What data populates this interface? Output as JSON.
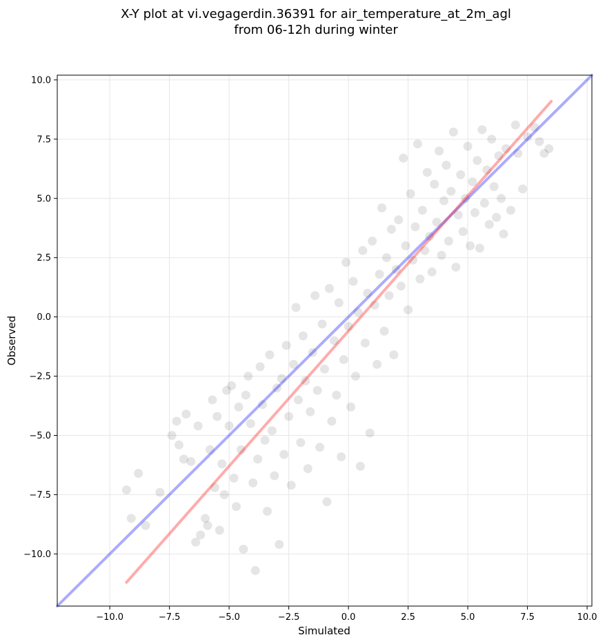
{
  "chart_data": {
    "type": "scatter",
    "title": "X-Y plot at vi.vegagerdin.36391 for air_temperature_at_2m_agl",
    "subtitle": "from 06-12h during winter",
    "xlabel": "Simulated",
    "ylabel": "Observed",
    "xlim": [
      -12.2,
      10.2
    ],
    "ylim": [
      -12.2,
      10.2
    ],
    "xticks": [
      -10.0,
      -7.5,
      -5.0,
      -2.5,
      0.0,
      2.5,
      5.0,
      7.5,
      10.0
    ],
    "yticks": [
      -10.0,
      -7.5,
      -5.0,
      -2.5,
      0.0,
      2.5,
      5.0,
      7.5,
      10.0
    ],
    "xtick_labels": [
      "−10.0",
      "−7.5",
      "−5.0",
      "−2.5",
      "0.0",
      "2.5",
      "5.0",
      "7.5",
      "10.0"
    ],
    "ytick_labels": [
      "−10.0",
      "−7.5",
      "−5.0",
      "−2.5",
      "0.0",
      "2.5",
      "5.0",
      "7.5",
      "10.0"
    ],
    "grid": true,
    "point_color": "#000000",
    "point_alpha": 0.1,
    "lines": [
      {
        "role": "one-to-one",
        "color": "#0000ff",
        "x": [
          -12.2,
          10.2
        ],
        "y": [
          -12.2,
          10.2
        ]
      },
      {
        "role": "regression",
        "color": "#ff0000",
        "x": [
          -9.3,
          8.5
        ],
        "y": [
          -11.2,
          9.1
        ]
      }
    ],
    "points": [
      [
        -9.3,
        -7.3
      ],
      [
        -9.1,
        -8.5
      ],
      [
        -8.8,
        -6.6
      ],
      [
        -8.5,
        -8.8
      ],
      [
        -7.9,
        -7.4
      ],
      [
        -7.4,
        -5.0
      ],
      [
        -7.1,
        -5.4
      ],
      [
        -7.2,
        -4.4
      ],
      [
        -6.9,
        -6.0
      ],
      [
        -6.8,
        -4.1
      ],
      [
        -6.6,
        -6.1
      ],
      [
        -6.4,
        -9.5
      ],
      [
        -6.3,
        -4.6
      ],
      [
        -6.2,
        -9.2
      ],
      [
        -6.0,
        -8.5
      ],
      [
        -5.9,
        -8.8
      ],
      [
        -5.8,
        -5.6
      ],
      [
        -5.7,
        -3.5
      ],
      [
        -5.6,
        -7.2
      ],
      [
        -5.5,
        -4.2
      ],
      [
        -5.4,
        -9.0
      ],
      [
        -5.3,
        -6.2
      ],
      [
        -5.2,
        -7.5
      ],
      [
        -5.1,
        -3.1
      ],
      [
        -5.0,
        -4.6
      ],
      [
        -4.9,
        -2.9
      ],
      [
        -4.8,
        -6.8
      ],
      [
        -4.7,
        -8.0
      ],
      [
        -4.6,
        -3.8
      ],
      [
        -4.5,
        -5.6
      ],
      [
        -4.4,
        -9.8
      ],
      [
        -4.3,
        -3.3
      ],
      [
        -4.2,
        -2.5
      ],
      [
        -4.1,
        -4.5
      ],
      [
        -4.0,
        -7.0
      ],
      [
        -3.9,
        -10.7
      ],
      [
        -3.8,
        -6.0
      ],
      [
        -3.7,
        -2.1
      ],
      [
        -3.6,
        -3.7
      ],
      [
        -3.5,
        -5.2
      ],
      [
        -3.4,
        -8.2
      ],
      [
        -3.3,
        -1.6
      ],
      [
        -3.2,
        -4.8
      ],
      [
        -3.1,
        -6.7
      ],
      [
        -3.0,
        -3.0
      ],
      [
        -2.9,
        -9.6
      ],
      [
        -2.8,
        -2.6
      ],
      [
        -2.7,
        -5.8
      ],
      [
        -2.6,
        -1.2
      ],
      [
        -2.5,
        -4.2
      ],
      [
        -2.4,
        -7.1
      ],
      [
        -2.3,
        -2.0
      ],
      [
        -2.2,
        0.4
      ],
      [
        -2.1,
        -3.5
      ],
      [
        -2.0,
        -5.3
      ],
      [
        -1.9,
        -0.8
      ],
      [
        -1.8,
        -2.7
      ],
      [
        -1.7,
        -6.4
      ],
      [
        -1.6,
        -4.0
      ],
      [
        -1.5,
        -1.5
      ],
      [
        -1.4,
        0.9
      ],
      [
        -1.3,
        -3.1
      ],
      [
        -1.2,
        -5.5
      ],
      [
        -1.1,
        -0.3
      ],
      [
        -1.0,
        -2.2
      ],
      [
        -0.9,
        -7.8
      ],
      [
        -0.8,
        1.2
      ],
      [
        -0.7,
        -4.4
      ],
      [
        -0.6,
        -1.0
      ],
      [
        -0.5,
        -3.3
      ],
      [
        -0.4,
        0.6
      ],
      [
        -0.3,
        -5.9
      ],
      [
        -0.2,
        -1.8
      ],
      [
        -0.1,
        2.3
      ],
      [
        0.0,
        -0.4
      ],
      [
        0.1,
        -3.8
      ],
      [
        0.2,
        1.5
      ],
      [
        0.3,
        -2.5
      ],
      [
        0.4,
        0.2
      ],
      [
        0.5,
        -6.3
      ],
      [
        0.6,
        2.8
      ],
      [
        0.7,
        -1.1
      ],
      [
        0.8,
        1.0
      ],
      [
        0.9,
        -4.9
      ],
      [
        1.0,
        3.2
      ],
      [
        1.1,
        0.5
      ],
      [
        1.2,
        -2.0
      ],
      [
        1.3,
        1.8
      ],
      [
        1.4,
        4.6
      ],
      [
        1.5,
        -0.6
      ],
      [
        1.6,
        2.5
      ],
      [
        1.7,
        0.9
      ],
      [
        1.8,
        3.7
      ],
      [
        1.9,
        -1.6
      ],
      [
        2.0,
        2.0
      ],
      [
        2.1,
        4.1
      ],
      [
        2.2,
        1.3
      ],
      [
        2.3,
        6.7
      ],
      [
        2.4,
        3.0
      ],
      [
        2.5,
        0.3
      ],
      [
        2.6,
        5.2
      ],
      [
        2.7,
        2.4
      ],
      [
        2.8,
        3.8
      ],
      [
        2.9,
        7.3
      ],
      [
        3.0,
        1.6
      ],
      [
        3.1,
        4.5
      ],
      [
        3.2,
        2.8
      ],
      [
        3.3,
        6.1
      ],
      [
        3.4,
        3.4
      ],
      [
        3.5,
        1.9
      ],
      [
        3.6,
        5.6
      ],
      [
        3.7,
        4.0
      ],
      [
        3.8,
        7.0
      ],
      [
        3.9,
        2.6
      ],
      [
        4.0,
        4.9
      ],
      [
        4.1,
        6.4
      ],
      [
        4.2,
        3.2
      ],
      [
        4.3,
        5.3
      ],
      [
        4.4,
        7.8
      ],
      [
        4.5,
        2.1
      ],
      [
        4.6,
        4.3
      ],
      [
        4.7,
        6.0
      ],
      [
        4.8,
        3.6
      ],
      [
        4.9,
        5.0
      ],
      [
        5.0,
        7.2
      ],
      [
        5.1,
        3.0
      ],
      [
        5.2,
        5.7
      ],
      [
        5.3,
        4.4
      ],
      [
        5.4,
        6.6
      ],
      [
        5.5,
        2.9
      ],
      [
        5.6,
        7.9
      ],
      [
        5.7,
        4.8
      ],
      [
        5.8,
        6.2
      ],
      [
        5.9,
        3.9
      ],
      [
        6.0,
        7.5
      ],
      [
        6.1,
        5.5
      ],
      [
        6.2,
        4.2
      ],
      [
        6.3,
        6.8
      ],
      [
        6.4,
        5.0
      ],
      [
        6.5,
        3.5
      ],
      [
        6.6,
        7.1
      ],
      [
        6.8,
        4.5
      ],
      [
        7.0,
        8.1
      ],
      [
        7.1,
        6.9
      ],
      [
        7.3,
        5.4
      ],
      [
        7.5,
        7.6
      ],
      [
        7.8,
        8.0
      ],
      [
        8.0,
        7.4
      ],
      [
        8.2,
        6.9
      ],
      [
        8.4,
        7.1
      ]
    ]
  }
}
